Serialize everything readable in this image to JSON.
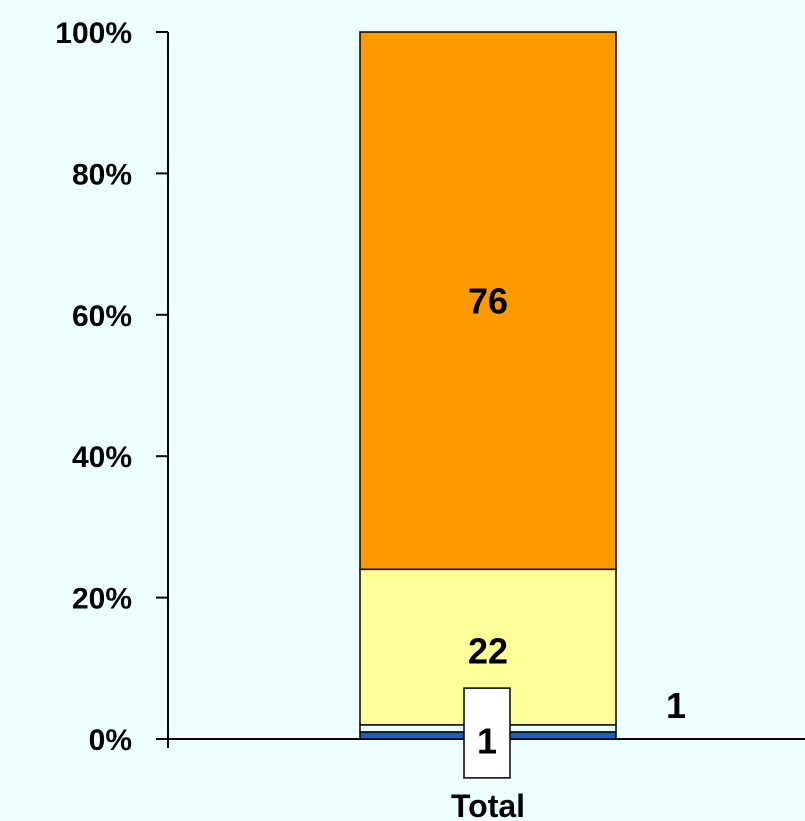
{
  "chart_data": {
    "type": "bar",
    "stacked": true,
    "percent": true,
    "categories": [
      "Total"
    ],
    "series": [
      {
        "values": [
          1
        ],
        "color": "#1f5fbf"
      },
      {
        "values": [
          1
        ],
        "color": "#eeffff"
      },
      {
        "values": [
          22
        ],
        "color": "#ffff99"
      },
      {
        "values": [
          76
        ],
        "color": "#ff9900"
      }
    ],
    "data_labels": [
      "1",
      "1",
      "22",
      "76"
    ],
    "yticks": [
      "0%",
      "20%",
      "40%",
      "60%",
      "80%",
      "100%"
    ],
    "ylim": [
      0,
      100
    ],
    "title": "",
    "xlabel": "",
    "ylabel": "",
    "grid": false,
    "legend": "none"
  }
}
